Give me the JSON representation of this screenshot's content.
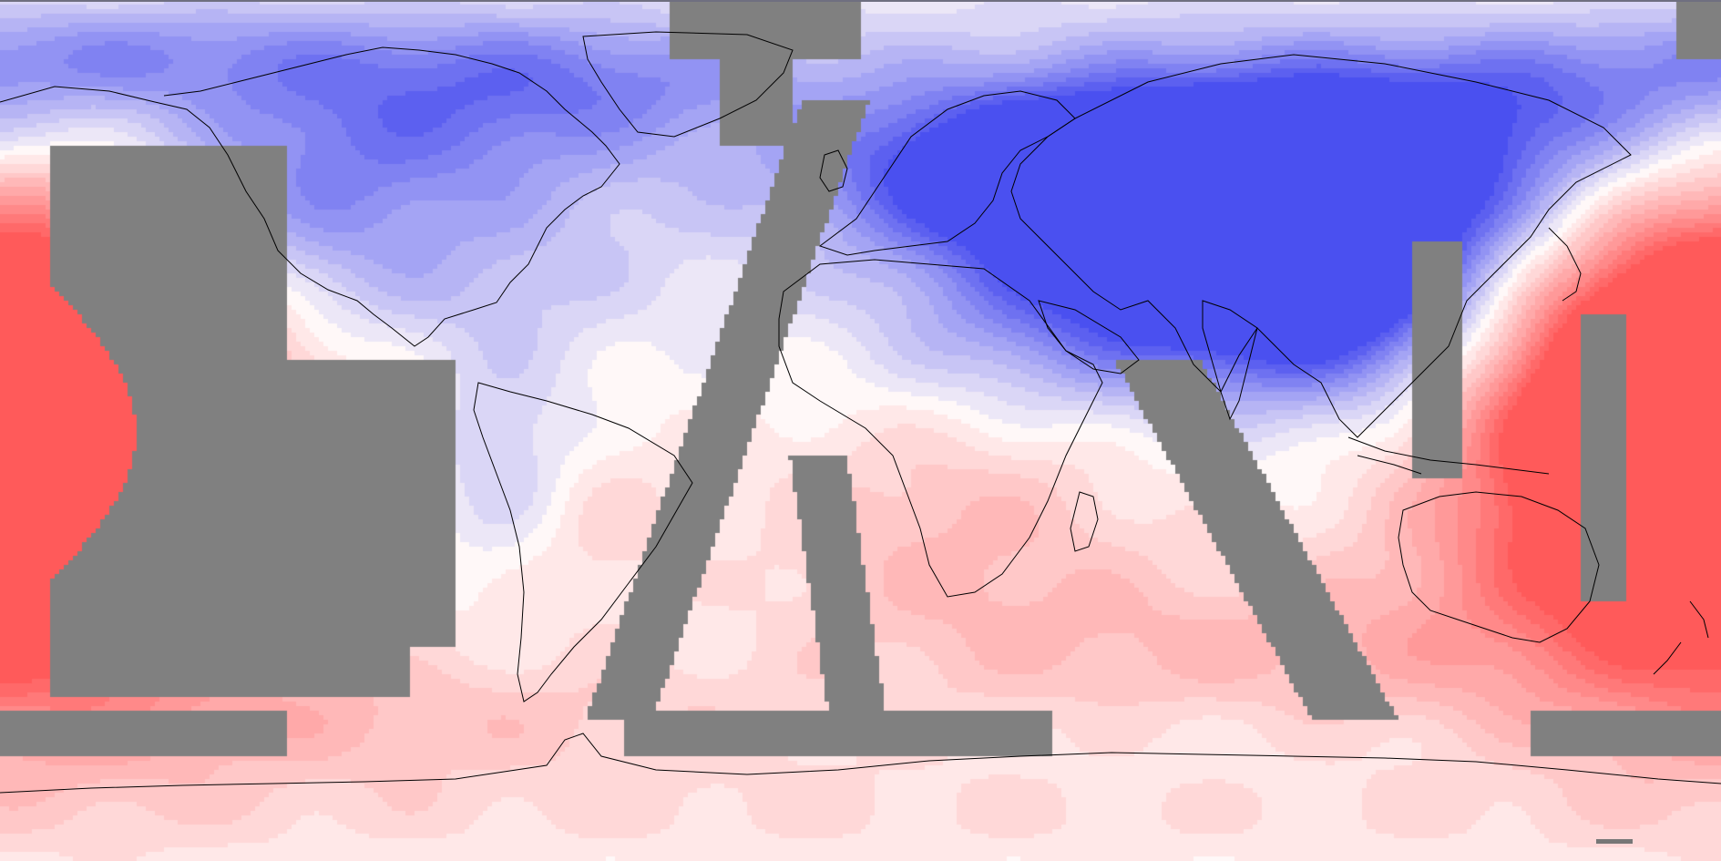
{
  "map": {
    "projection": "equirectangular",
    "extent": {
      "lon": [
        -180,
        180
      ],
      "lat": [
        -90,
        90
      ]
    },
    "central_longitude": 0,
    "no_data_color": "#808080",
    "coastline_color": "#000000",
    "top_strip_color": "#6f6f80",
    "colormap": {
      "type": "diverging",
      "negative": "#4a50f0",
      "neutral": "#fff8f8",
      "positive": "#ff5a5a"
    },
    "features": [
      "coastlines",
      "lakes",
      "filled-contours",
      "masked-ocean-regions"
    ]
  }
}
